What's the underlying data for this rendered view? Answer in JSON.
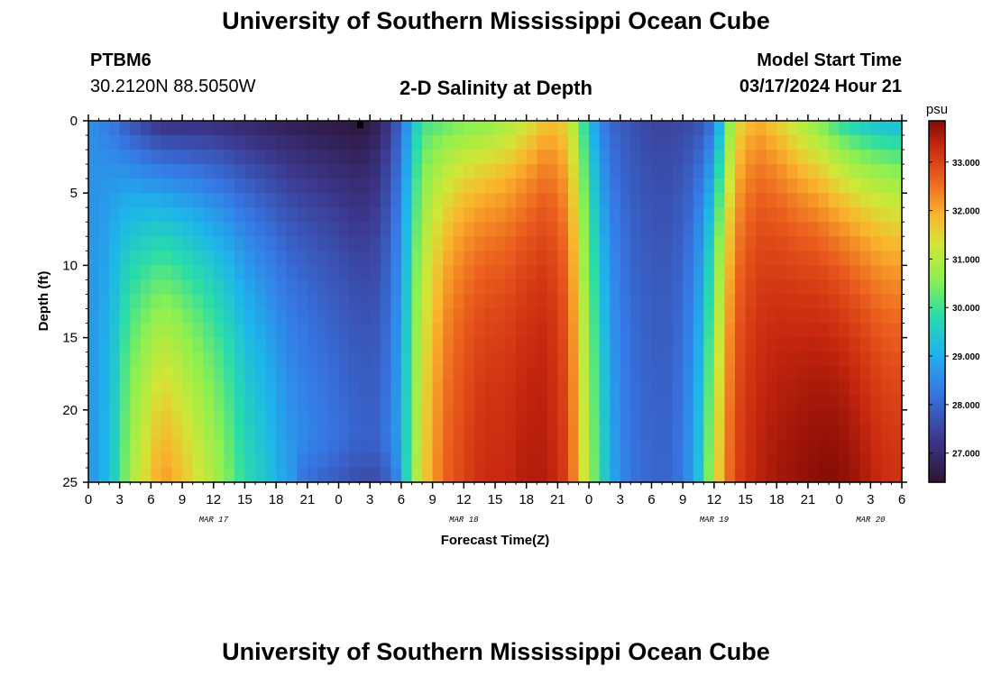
{
  "page": {
    "title_top": "University of Southern Mississippi Ocean Cube",
    "title_bottom": "University of Southern Mississippi Ocean Cube",
    "station_id": "PTBM6",
    "coords": "30.2120N  88.5050W",
    "center_title": "2-D Salinity at Depth",
    "model_label": "Model Start Time",
    "model_time": "03/17/2024 Hour 21"
  },
  "chart_data": {
    "type": "heatmap",
    "title": "2-D Salinity at Depth",
    "xlabel": "Forecast Time(Z)",
    "ylabel": "Depth (ft)",
    "x_range_hours": [
      0,
      78
    ],
    "y_range_ft": [
      0,
      25
    ],
    "x_tick_labels": [
      "0",
      "3",
      "6",
      "9",
      "12",
      "15",
      "18",
      "21",
      "0",
      "3",
      "6",
      "9",
      "12",
      "15",
      "18",
      "21",
      "0",
      "3",
      "6",
      "9",
      "12",
      "15",
      "18",
      "21",
      "0",
      "3",
      "6"
    ],
    "y_tick_labels": [
      "0",
      "5",
      "10",
      "15",
      "20",
      "25"
    ],
    "date_labels": [
      "MAR 17",
      "MAR 18",
      "MAR 19",
      "MAR 20"
    ],
    "colorbar": {
      "unit": "psu",
      "min": 26.4,
      "max": 33.85,
      "ticks": [
        "27.000",
        "28.000",
        "29.000",
        "30.000",
        "31.000",
        "32.000",
        "33.000"
      ]
    },
    "profiles": [
      {
        "t": 0,
        "s0": 28.6,
        "s1": 28.6,
        "w": 0.3
      },
      {
        "t": 2,
        "s0": 28.3,
        "s1": 29.2,
        "w": 0.35
      },
      {
        "t": 4,
        "s0": 27.7,
        "s1": 30.8,
        "w": 0.5
      },
      {
        "t": 6,
        "s0": 27.3,
        "s1": 31.7,
        "w": 0.6
      },
      {
        "t": 7,
        "s0": 27.1,
        "s1": 32.2,
        "w": 0.65
      },
      {
        "t": 9,
        "s0": 27.1,
        "s1": 31.8,
        "w": 0.65
      },
      {
        "t": 11,
        "s0": 27.1,
        "s1": 31.2,
        "w": 0.6
      },
      {
        "t": 13,
        "s0": 27.0,
        "s1": 30.6,
        "w": 0.55
      },
      {
        "t": 15,
        "s0": 26.9,
        "s1": 29.8,
        "w": 0.5
      },
      {
        "t": 17,
        "s0": 26.8,
        "s1": 29.4,
        "w": 0.5
      },
      {
        "t": 19,
        "s0": 26.7,
        "s1": 28.8,
        "w": 0.45
      },
      {
        "t": 21,
        "s0": 26.6,
        "s1": 28.5,
        "w": 0.4
      },
      {
        "t": 24,
        "s0": 26.5,
        "s1": 28.2,
        "w": 0.4
      },
      {
        "t": 26,
        "s0": 26.4,
        "s1": 28.0,
        "w": 0.4
      },
      {
        "t": 28,
        "s0": 26.8,
        "s1": 28.0,
        "w": 0.4
      },
      {
        "t": 30,
        "s0": 28.0,
        "s1": 29.0,
        "w": 0.5
      },
      {
        "t": 31,
        "s0": 29.2,
        "s1": 30.4,
        "w": 0.5
      },
      {
        "t": 32,
        "s0": 30.0,
        "s1": 31.5,
        "w": 0.45
      },
      {
        "t": 34,
        "s0": 30.2,
        "s1": 32.6,
        "w": 0.35
      },
      {
        "t": 36,
        "s0": 30.4,
        "s1": 33.0,
        "w": 0.3
      },
      {
        "t": 38,
        "s0": 30.5,
        "s1": 33.3,
        "w": 0.3
      },
      {
        "t": 40,
        "s0": 30.8,
        "s1": 33.3,
        "w": 0.3
      },
      {
        "t": 42,
        "s0": 31.2,
        "s1": 33.5,
        "w": 0.3
      },
      {
        "t": 44,
        "s0": 31.8,
        "s1": 33.5,
        "w": 0.3
      },
      {
        "t": 46,
        "s0": 31.5,
        "s1": 33.0,
        "w": 0.35
      },
      {
        "t": 47,
        "s0": 30.5,
        "s1": 31.8,
        "w": 0.4
      },
      {
        "t": 48,
        "s0": 29.3,
        "s1": 30.8,
        "w": 0.5
      },
      {
        "t": 49,
        "s0": 28.5,
        "s1": 30.0,
        "w": 0.6
      },
      {
        "t": 50,
        "s0": 28.0,
        "s1": 29.0,
        "w": 0.6
      },
      {
        "t": 52,
        "s0": 27.7,
        "s1": 28.2,
        "w": 0.6
      },
      {
        "t": 54,
        "s0": 27.5,
        "s1": 28.0,
        "w": 0.6
      },
      {
        "t": 56,
        "s0": 27.5,
        "s1": 28.0,
        "w": 0.6
      },
      {
        "t": 58,
        "s0": 27.6,
        "s1": 28.8,
        "w": 0.6
      },
      {
        "t": 59,
        "s0": 27.8,
        "s1": 29.8,
        "w": 0.6
      },
      {
        "t": 60,
        "s0": 28.2,
        "s1": 31.2,
        "w": 0.5
      },
      {
        "t": 61,
        "s0": 29.8,
        "s1": 32.2,
        "w": 0.45
      },
      {
        "t": 62,
        "s0": 31.3,
        "s1": 33.0,
        "w": 0.4
      },
      {
        "t": 64,
        "s0": 32.0,
        "s1": 33.4,
        "w": 0.35
      },
      {
        "t": 66,
        "s0": 31.6,
        "s1": 33.6,
        "w": 0.35
      },
      {
        "t": 68,
        "s0": 31.0,
        "s1": 33.7,
        "w": 0.35
      },
      {
        "t": 70,
        "s0": 30.5,
        "s1": 33.8,
        "w": 0.35
      },
      {
        "t": 72,
        "s0": 29.8,
        "s1": 33.8,
        "w": 0.35
      },
      {
        "t": 74,
        "s0": 29.4,
        "s1": 33.6,
        "w": 0.35
      },
      {
        "t": 76,
        "s0": 29.2,
        "s1": 33.3,
        "w": 0.35
      },
      {
        "t": 78,
        "s0": 29.1,
        "s1": 33.2,
        "w": 0.35
      }
    ]
  }
}
